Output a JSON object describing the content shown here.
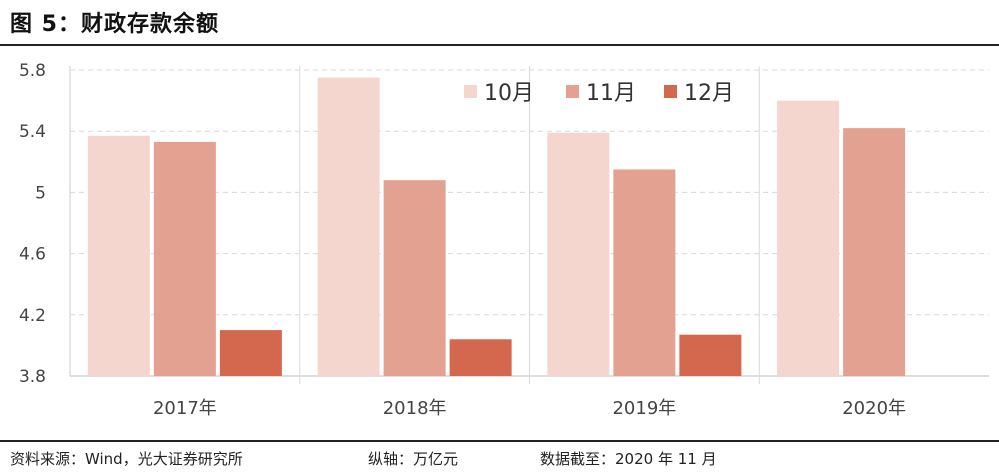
{
  "title": "图 5：财政存款余额",
  "footer": {
    "source": "资料来源：Wind，光大证券研究所",
    "unit": "纵轴：万亿元",
    "cutoff": "数据截至：2020 年 11 月"
  },
  "chart_data": {
    "type": "bar",
    "categories": [
      "2017年",
      "2018年",
      "2019年",
      "2020年"
    ],
    "series": [
      {
        "name": "10月",
        "color": "#f5d6cf",
        "values": [
          5.37,
          5.75,
          5.39,
          5.6
        ]
      },
      {
        "name": "11月",
        "color": "#e3a291",
        "values": [
          5.33,
          5.08,
          5.15,
          5.42
        ]
      },
      {
        "name": "12月",
        "color": "#d4684e",
        "values": [
          4.1,
          4.04,
          4.07,
          null
        ]
      }
    ],
    "yticks": [
      "3.8",
      "4.2",
      "4.6",
      "5",
      "5.4",
      "5.8"
    ],
    "ylim": [
      3.8,
      5.8
    ],
    "grid": true,
    "legend": "top-right"
  }
}
